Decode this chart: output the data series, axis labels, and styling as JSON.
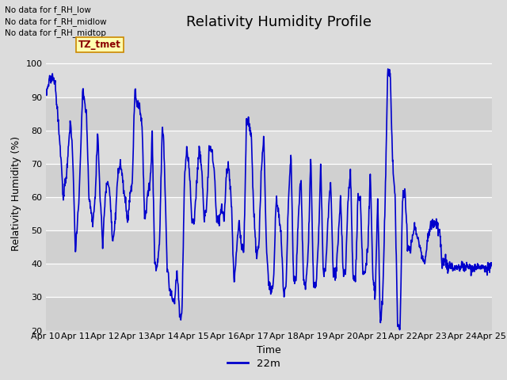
{
  "title": "Relativity Humidity Profile",
  "xlabel": "Time",
  "ylabel": "Relativity Humidity (%)",
  "ylim": [
    20,
    102
  ],
  "yticks": [
    20,
    30,
    40,
    50,
    60,
    70,
    80,
    90,
    100
  ],
  "line_color": "#0000cc",
  "line_width": 1.2,
  "legend_label": "22m",
  "bg_color": "#dcdcdc",
  "plot_bg_color": "#dcdcdc",
  "no_data_texts": [
    "No data for f_RH_low",
    "No data for f_RH_midlow",
    "No data for f_RH_midtop"
  ],
  "tz_label": "TZ_tmet",
  "x_tick_labels": [
    "Apr 10",
    "Apr 11",
    "Apr 12",
    "Apr 13",
    "Apr 14",
    "Apr 15",
    "Apr 16",
    "Apr 17",
    "Apr 18",
    "Apr 19",
    "Apr 20",
    "Apr 21",
    "Apr 22",
    "Apr 23",
    "Apr 24",
    "Apr 25"
  ],
  "title_fontsize": 13,
  "axis_label_fontsize": 9,
  "tick_fontsize": 8,
  "key_points": [
    [
      0,
      91
    ],
    [
      3,
      95
    ],
    [
      6,
      96
    ],
    [
      8,
      93
    ],
    [
      10,
      84
    ],
    [
      12,
      74
    ],
    [
      14,
      60
    ],
    [
      17,
      67
    ],
    [
      20,
      83
    ],
    [
      22,
      72
    ],
    [
      24,
      43
    ],
    [
      27,
      60
    ],
    [
      30,
      93
    ],
    [
      33,
      84
    ],
    [
      35,
      60
    ],
    [
      38,
      52
    ],
    [
      40,
      60
    ],
    [
      42,
      80
    ],
    [
      44,
      60
    ],
    [
      46,
      46
    ],
    [
      48,
      60
    ],
    [
      50,
      65
    ],
    [
      52,
      60
    ],
    [
      54,
      46
    ],
    [
      56,
      52
    ],
    [
      58,
      65
    ],
    [
      60,
      70
    ],
    [
      62,
      65
    ],
    [
      64,
      60
    ],
    [
      66,
      52
    ],
    [
      68,
      60
    ],
    [
      70,
      65
    ],
    [
      72,
      92
    ],
    [
      74,
      88
    ],
    [
      76,
      87
    ],
    [
      78,
      80
    ],
    [
      80,
      52
    ],
    [
      82,
      60
    ],
    [
      84,
      64
    ],
    [
      85,
      69
    ],
    [
      86,
      80
    ],
    [
      88,
      40
    ],
    [
      90,
      39
    ],
    [
      92,
      47
    ],
    [
      94,
      80
    ],
    [
      95,
      80
    ],
    [
      96,
      68
    ],
    [
      98,
      40
    ],
    [
      100,
      32
    ],
    [
      102,
      30
    ],
    [
      104,
      28
    ],
    [
      106,
      39
    ],
    [
      108,
      25
    ],
    [
      110,
      24
    ],
    [
      112,
      65
    ],
    [
      114,
      75
    ],
    [
      116,
      68
    ],
    [
      118,
      53
    ],
    [
      120,
      53
    ],
    [
      122,
      65
    ],
    [
      124,
      75
    ],
    [
      126,
      68
    ],
    [
      128,
      53
    ],
    [
      130,
      58
    ],
    [
      132,
      75
    ],
    [
      134,
      74
    ],
    [
      136,
      68
    ],
    [
      138,
      54
    ],
    [
      140,
      53
    ],
    [
      142,
      57
    ],
    [
      144,
      53
    ],
    [
      146,
      68
    ],
    [
      148,
      68
    ],
    [
      150,
      57
    ],
    [
      152,
      34
    ],
    [
      154,
      43
    ],
    [
      156,
      53
    ],
    [
      158,
      45
    ],
    [
      160,
      44
    ],
    [
      162,
      83
    ],
    [
      164,
      82
    ],
    [
      166,
      78
    ],
    [
      168,
      54
    ],
    [
      170,
      43
    ],
    [
      172,
      45
    ],
    [
      174,
      68
    ],
    [
      176,
      79
    ],
    [
      178,
      46
    ],
    [
      180,
      34
    ],
    [
      182,
      32
    ],
    [
      184,
      35
    ],
    [
      186,
      60
    ],
    [
      188,
      55
    ],
    [
      190,
      49
    ],
    [
      192,
      31
    ],
    [
      194,
      33
    ],
    [
      196,
      60
    ],
    [
      198,
      73
    ],
    [
      200,
      36
    ],
    [
      202,
      35
    ],
    [
      204,
      55
    ],
    [
      206,
      67
    ],
    [
      208,
      35
    ],
    [
      210,
      33
    ],
    [
      212,
      45
    ],
    [
      214,
      73
    ],
    [
      216,
      35
    ],
    [
      218,
      33
    ],
    [
      220,
      45
    ],
    [
      222,
      70
    ],
    [
      224,
      37
    ],
    [
      226,
      38
    ],
    [
      228,
      55
    ],
    [
      230,
      64
    ],
    [
      232,
      38
    ],
    [
      234,
      36
    ],
    [
      236,
      47
    ],
    [
      238,
      60
    ],
    [
      240,
      37
    ],
    [
      242,
      38
    ],
    [
      244,
      59
    ],
    [
      246,
      68
    ],
    [
      248,
      36
    ],
    [
      250,
      35
    ],
    [
      252,
      60
    ],
    [
      254,
      59
    ],
    [
      256,
      37
    ],
    [
      258,
      37
    ],
    [
      260,
      45
    ],
    [
      262,
      68
    ],
    [
      264,
      36
    ],
    [
      266,
      31
    ],
    [
      268,
      60
    ],
    [
      270,
      22
    ],
    [
      272,
      30
    ],
    [
      274,
      60
    ],
    [
      276,
      98
    ],
    [
      278,
      97
    ],
    [
      280,
      70
    ],
    [
      282,
      60
    ],
    [
      284,
      22
    ],
    [
      286,
      21
    ],
    [
      288,
      60
    ],
    [
      290,
      62
    ],
    [
      292,
      45
    ],
    [
      294,
      44
    ],
    [
      296,
      48
    ],
    [
      298,
      52
    ],
    [
      300,
      48
    ],
    [
      302,
      45
    ],
    [
      304,
      42
    ],
    [
      306,
      40
    ],
    [
      308,
      47
    ],
    [
      310,
      51
    ],
    [
      312,
      52
    ],
    [
      315,
      52
    ],
    [
      318,
      50
    ],
    [
      320,
      40
    ],
    [
      322,
      42
    ],
    [
      324,
      39
    ],
    [
      360,
      39
    ]
  ]
}
